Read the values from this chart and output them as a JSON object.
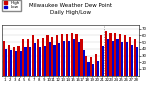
{
  "title": "Milwaukee Weather Dew Point",
  "subtitle": "Daily High/Low",
  "bar_width": 0.45,
  "high_color": "#cc0000",
  "low_color": "#0000cc",
  "background_color": "#ffffff",
  "y_ticks": [
    10,
    20,
    30,
    40,
    50,
    60,
    70
  ],
  "ylim": [
    0,
    75
  ],
  "categories": [
    "1",
    "2",
    "3",
    "4",
    "5",
    "6",
    "7",
    "8",
    "9",
    "10",
    "11",
    "12",
    "13",
    "14",
    "15",
    "16",
    "17",
    "18",
    "19",
    "20",
    "21",
    "22",
    "23",
    "24",
    "25",
    "26",
    "27",
    "28"
  ],
  "highs": [
    52,
    46,
    43,
    44,
    54,
    54,
    60,
    54,
    56,
    60,
    58,
    60,
    62,
    62,
    64,
    62,
    54,
    30,
    28,
    32,
    60,
    66,
    64,
    64,
    62,
    60,
    58,
    54
  ],
  "lows": [
    40,
    38,
    36,
    36,
    42,
    42,
    48,
    42,
    44,
    50,
    46,
    48,
    52,
    52,
    54,
    50,
    38,
    20,
    18,
    22,
    44,
    54,
    52,
    54,
    50,
    50,
    46,
    42
  ],
  "vline_pos": 20.5,
  "title_fontsize": 4,
  "tick_fontsize": 2.8,
  "legend_fontsize": 3.0
}
